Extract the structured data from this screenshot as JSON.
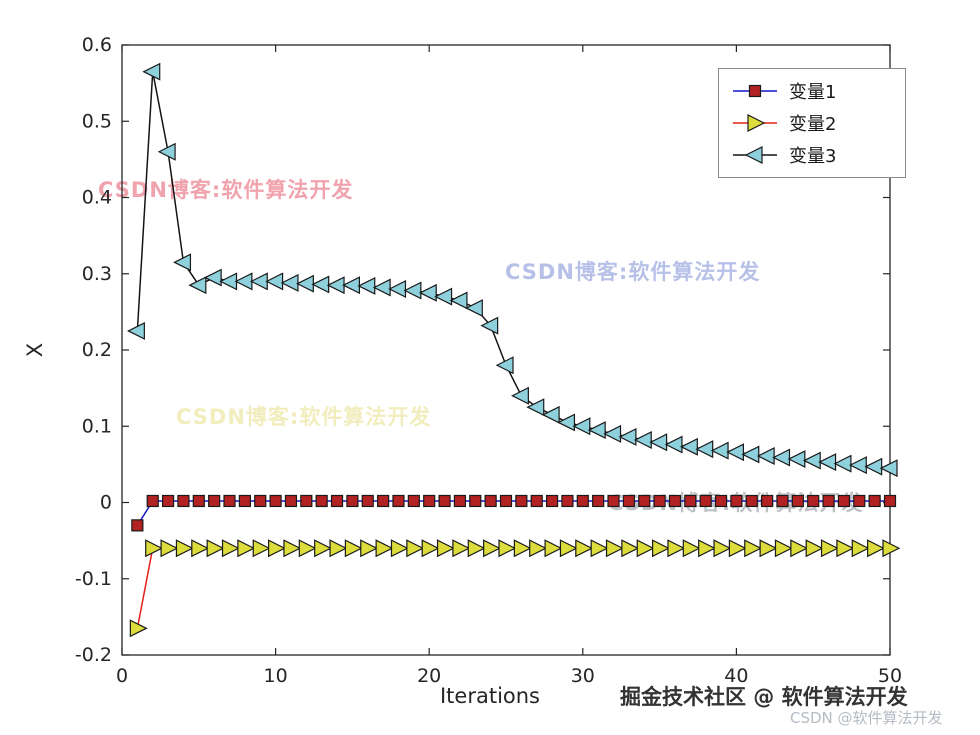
{
  "figure": {
    "background": "#ffffff",
    "axis_color": "#262626"
  },
  "chart_data": {
    "type": "line",
    "title": "",
    "xlabel": "Iterations",
    "ylabel": "X",
    "xlim": [
      0,
      50
    ],
    "ylim": [
      -0.2,
      0.6
    ],
    "xticks": [
      0,
      10,
      20,
      30,
      40,
      50
    ],
    "xtick_labels": [
      "0",
      "10",
      "20",
      "30",
      "40",
      "50"
    ],
    "yticks": [
      -0.2,
      -0.1,
      0,
      0.1,
      0.2,
      0.3,
      0.4,
      0.5,
      0.6
    ],
    "ytick_labels": [
      "-0.2",
      "-0.1",
      "0",
      "0.1",
      "0.2",
      "0.3",
      "0.4",
      "0.5",
      "0.6"
    ],
    "grid": false,
    "legend_position": "top-right",
    "x": [
      1,
      2,
      3,
      4,
      5,
      6,
      7,
      8,
      9,
      10,
      11,
      12,
      13,
      14,
      15,
      16,
      17,
      18,
      19,
      20,
      21,
      22,
      23,
      24,
      25,
      26,
      27,
      28,
      29,
      30,
      31,
      32,
      33,
      34,
      35,
      36,
      37,
      38,
      39,
      40,
      41,
      42,
      43,
      44,
      45,
      46,
      47,
      48,
      49,
      50
    ],
    "series": [
      {
        "name": "变量1",
        "line_color": "#1414c8",
        "marker": "square",
        "marker_fill": "#b22222",
        "marker_edge": "#1a1a1a",
        "values": [
          -0.03,
          0.002,
          0.002,
          0.002,
          0.002,
          0.002,
          0.002,
          0.002,
          0.002,
          0.002,
          0.002,
          0.002,
          0.002,
          0.002,
          0.002,
          0.002,
          0.002,
          0.002,
          0.002,
          0.002,
          0.002,
          0.002,
          0.002,
          0.002,
          0.002,
          0.002,
          0.002,
          0.002,
          0.002,
          0.002,
          0.002,
          0.002,
          0.002,
          0.002,
          0.002,
          0.002,
          0.002,
          0.002,
          0.002,
          0.002,
          0.002,
          0.002,
          0.002,
          0.002,
          0.002,
          0.002,
          0.002,
          0.002,
          0.002,
          0.002
        ]
      },
      {
        "name": "变量2",
        "line_color": "#e32118",
        "marker": "triangle-right",
        "marker_fill": "#dcdc3c",
        "marker_edge": "#1a1a1a",
        "values": [
          -0.165,
          -0.06,
          -0.06,
          -0.06,
          -0.06,
          -0.06,
          -0.06,
          -0.06,
          -0.06,
          -0.06,
          -0.06,
          -0.06,
          -0.06,
          -0.06,
          -0.06,
          -0.06,
          -0.06,
          -0.06,
          -0.06,
          -0.06,
          -0.06,
          -0.06,
          -0.06,
          -0.06,
          -0.06,
          -0.06,
          -0.06,
          -0.06,
          -0.06,
          -0.06,
          -0.06,
          -0.06,
          -0.06,
          -0.06,
          -0.06,
          -0.06,
          -0.06,
          -0.06,
          -0.06,
          -0.06,
          -0.06,
          -0.06,
          -0.06,
          -0.06,
          -0.06,
          -0.06,
          -0.06,
          -0.06,
          -0.06,
          -0.06
        ]
      },
      {
        "name": "变量3",
        "line_color": "#141414",
        "marker": "triangle-left",
        "marker_fill": "#8ed0dc",
        "marker_edge": "#1a1a1a",
        "values": [
          0.225,
          0.565,
          0.46,
          0.315,
          0.285,
          0.295,
          0.29,
          0.29,
          0.29,
          0.29,
          0.288,
          0.287,
          0.286,
          0.285,
          0.285,
          0.284,
          0.282,
          0.28,
          0.278,
          0.275,
          0.27,
          0.265,
          0.255,
          0.232,
          0.18,
          0.14,
          0.125,
          0.115,
          0.105,
          0.1,
          0.095,
          0.09,
          0.086,
          0.082,
          0.079,
          0.076,
          0.073,
          0.07,
          0.068,
          0.066,
          0.063,
          0.061,
          0.059,
          0.057,
          0.055,
          0.053,
          0.051,
          0.049,
          0.047,
          0.045
        ]
      }
    ]
  },
  "legend": {
    "items": [
      {
        "label": "变量1"
      },
      {
        "label": "变量2"
      },
      {
        "label": "变量3"
      }
    ]
  },
  "watermarks": [
    {
      "text": "CSDN博客:软件算法开发",
      "color": "#f0a3ad"
    },
    {
      "text": "CSDN博客:软件算法开发",
      "color": "#b7c1e8"
    },
    {
      "text": "CSDN博客:软件算法开发",
      "color": "#f2edbd"
    },
    {
      "text": "CSDN博客:软件算法开发",
      "color": "#a8adb3"
    }
  ],
  "footer": {
    "community_credit": "掘金技术社区 @ 软件算法开发",
    "community_credit_color": "#333333",
    "csdn_credit": "CSDN @软件算法开发",
    "csdn_credit_color": "#b5bcc4"
  }
}
